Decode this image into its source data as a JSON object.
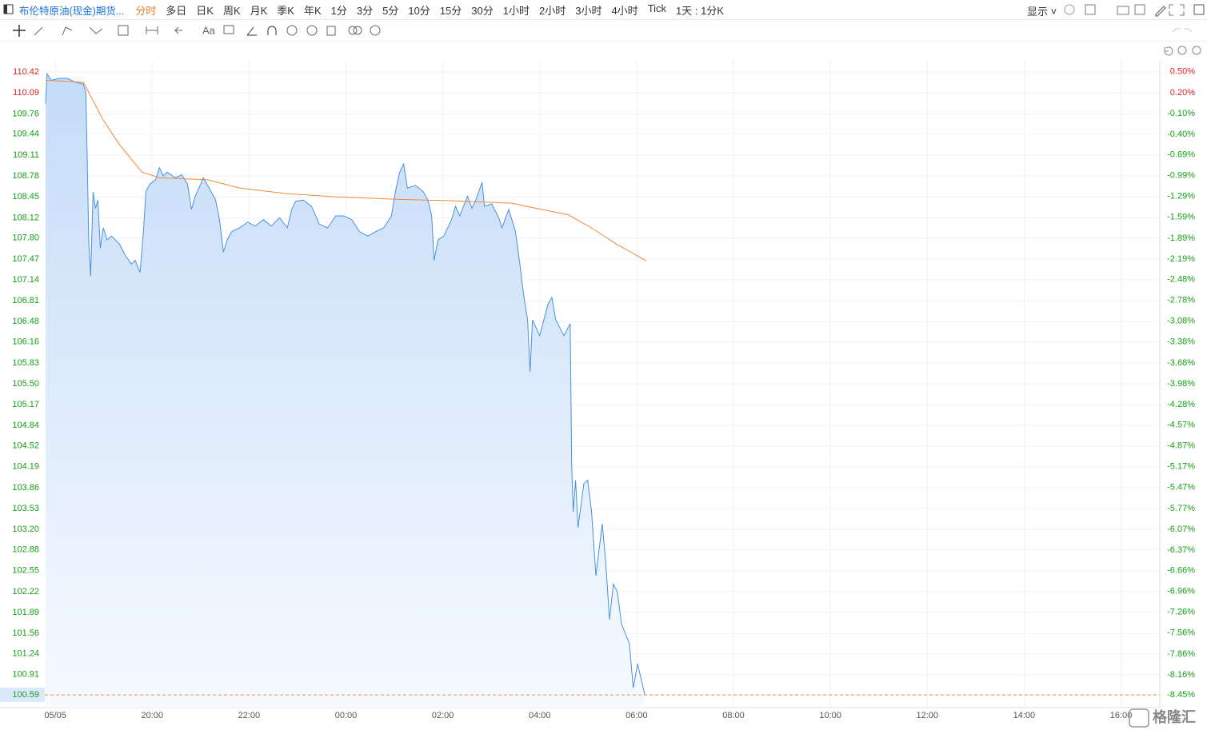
{
  "toolbar": {
    "title": "布伦特原油(现金)期货...",
    "tabs": [
      "分时",
      "多日",
      "日K",
      "周K",
      "月K",
      "季K",
      "年K",
      "1分",
      "3分",
      "5分",
      "10分",
      "15分",
      "30分",
      "1小时",
      "2小时",
      "3小时",
      "4小时",
      "Tick",
      "1天 : 1分K"
    ],
    "active_tab": 0,
    "display": "显示",
    "text_tool": "Aa"
  },
  "watermark": "格隆汇",
  "chart_data": {
    "type": "line",
    "series": [
      {
        "color": "#4a90e2",
        "area": true,
        "x": [
          17.8,
          17.83,
          17.92,
          18.08,
          18.25,
          18.41,
          18.58,
          18.63,
          18.66,
          18.69,
          18.73,
          18.78,
          18.83,
          18.88,
          18.93,
          18.99,
          19.07,
          19.16,
          19.32,
          19.45,
          19.57,
          19.65,
          19.75,
          19.82,
          19.87,
          19.95,
          20.07,
          20.15,
          20.23,
          20.31,
          20.48,
          20.61,
          20.73,
          20.81,
          20.89,
          21.06,
          21.22,
          21.31,
          21.39,
          21.47,
          21.55,
          21.64,
          21.8,
          21.97,
          22.13,
          22.3,
          22.46,
          22.63,
          22.79,
          22.88,
          22.96,
          23.12,
          23.29,
          23.45,
          23.62,
          23.79,
          23.95,
          24.12,
          24.28,
          24.45,
          24.61,
          24.78,
          24.94,
          25.02,
          25.11,
          25.19,
          25.27,
          25.44,
          25.6,
          25.69,
          25.77,
          25.82,
          25.9,
          26.02,
          26.18,
          26.26,
          26.35,
          26.51,
          26.6,
          26.68,
          26.81,
          26.86,
          27.01,
          27.17,
          27.22,
          27.36,
          27.5,
          27.59,
          27.67,
          27.75,
          27.8,
          27.85,
          28.0,
          28.17,
          28.25,
          28.33,
          28.5,
          28.63,
          28.66,
          28.69,
          28.74,
          28.79,
          28.91,
          28.99,
          29.07,
          29.16,
          29.29,
          29.36,
          29.44,
          29.52,
          29.6,
          29.69,
          29.85,
          29.93,
          30.02,
          30.17
        ],
        "values": [
          109.92,
          110.39,
          110.29,
          110.32,
          110.32,
          110.26,
          110.23,
          110.1,
          109.03,
          107.77,
          107.2,
          108.53,
          108.27,
          108.4,
          107.64,
          107.96,
          107.77,
          107.83,
          107.71,
          107.52,
          107.39,
          107.45,
          107.26,
          107.9,
          108.53,
          108.65,
          108.72,
          108.91,
          108.78,
          108.84,
          108.75,
          108.8,
          108.65,
          108.25,
          108.46,
          108.75,
          108.53,
          108.4,
          108.09,
          107.58,
          107.77,
          107.9,
          107.96,
          108.05,
          107.99,
          108.09,
          107.99,
          108.12,
          107.96,
          108.25,
          108.38,
          108.4,
          108.3,
          108.02,
          107.96,
          108.15,
          108.15,
          108.09,
          107.9,
          107.83,
          107.9,
          107.96,
          108.15,
          108.53,
          108.84,
          108.97,
          108.59,
          108.63,
          108.53,
          108.4,
          108.15,
          107.45,
          107.77,
          107.83,
          108.09,
          108.3,
          108.15,
          108.46,
          108.27,
          108.4,
          108.68,
          108.3,
          108.34,
          108.09,
          107.96,
          108.25,
          107.9,
          107.39,
          106.89,
          106.51,
          105.69,
          106.51,
          106.26,
          106.76,
          106.86,
          106.51,
          106.26,
          106.45,
          104.24,
          103.48,
          103.98,
          103.23,
          103.92,
          103.98,
          103.48,
          102.47,
          103.29,
          102.72,
          101.78,
          102.34,
          102.22,
          101.71,
          101.4,
          100.7,
          101.08,
          100.59
        ]
      },
      {
        "color": "#f08a3c",
        "area": false,
        "x": [
          17.8,
          18.58,
          18.69,
          18.99,
          19.32,
          19.79,
          20.15,
          21.14,
          21.8,
          22.79,
          23.79,
          25.11,
          26.1,
          27.42,
          27.92,
          28.58,
          29.07,
          29.57,
          30.2
        ],
        "values": [
          110.29,
          110.26,
          110.1,
          109.66,
          109.28,
          108.84,
          108.75,
          108.72,
          108.59,
          108.5,
          108.45,
          108.41,
          108.39,
          108.35,
          108.27,
          108.17,
          107.96,
          107.71,
          107.44
        ]
      }
    ],
    "xlim": [
      17.8,
      40.8
    ],
    "xticks": [
      {
        "value": 18,
        "label": "05/05"
      },
      {
        "value": 20,
        "label": "20:00"
      },
      {
        "value": 22,
        "label": "22:00"
      },
      {
        "value": 24,
        "label": "00:00"
      },
      {
        "value": 26,
        "label": "02:00"
      },
      {
        "value": 28,
        "label": "04:00"
      },
      {
        "value": 30,
        "label": "06:00"
      },
      {
        "value": 32,
        "label": "08:00"
      },
      {
        "value": 34,
        "label": "10:00"
      },
      {
        "value": 36,
        "label": "12:00"
      },
      {
        "value": 38,
        "label": "14:00"
      },
      {
        "value": 40,
        "label": "16:00"
      }
    ],
    "ylim": [
      100.39,
      110.61
    ],
    "yticks": [
      110.42,
      110.09,
      109.76,
      109.44,
      109.11,
      108.78,
      108.45,
      108.12,
      {
        "value": 107.8,
        "label": "107.80"
      },
      107.47,
      107.14,
      106.81,
      106.48,
      106.16,
      105.83,
      {
        "value": 105.5,
        "label": "105.50"
      },
      105.17,
      104.84,
      104.52,
      104.19,
      103.86,
      103.53,
      {
        "value": 103.2,
        "label": "103.20"
      },
      102.88,
      102.55,
      102.22,
      101.89,
      101.56,
      101.24,
      100.91,
      100.59
    ],
    "y2lim": [
      -8.63,
      0.67
    ],
    "y2ticks": [
      {
        "value": 0.5,
        "label": "0.50%"
      },
      {
        "value": 0.2,
        "label": "0.20%"
      },
      {
        "value": -0.1,
        "label": "-0.10%"
      },
      {
        "value": -0.4,
        "label": "-0.40%"
      },
      {
        "value": -0.69,
        "label": "-0.69%"
      },
      {
        "value": -0.99,
        "label": "-0.99%"
      },
      {
        "value": -1.29,
        "label": "-1.29%"
      },
      {
        "value": -1.59,
        "label": "-1.59%"
      },
      {
        "value": -1.89,
        "label": "-1.89%"
      },
      {
        "value": -2.19,
        "label": "-2.19%"
      },
      {
        "value": -2.48,
        "label": "-2.48%"
      },
      {
        "value": -2.78,
        "label": "-2.78%"
      },
      {
        "value": -3.08,
        "label": "-3.08%"
      },
      {
        "value": -3.38,
        "label": "-3.38%"
      },
      {
        "value": -3.68,
        "label": "-3.68%"
      },
      {
        "value": -3.98,
        "label": "-3.98%"
      },
      {
        "value": -4.28,
        "label": "-4.28%"
      },
      {
        "value": -4.57,
        "label": "-4.57%"
      },
      {
        "value": -4.87,
        "label": "-4.87%"
      },
      {
        "value": -5.17,
        "label": "-5.17%"
      },
      {
        "value": -5.47,
        "label": "-5.47%"
      },
      {
        "value": -5.77,
        "label": "-5.77%"
      },
      {
        "value": -6.07,
        "label": "-6.07%"
      },
      {
        "value": -6.37,
        "label": "-6.37%"
      },
      {
        "value": -6.66,
        "label": "-6.66%"
      },
      {
        "value": -6.96,
        "label": "-6.96%"
      },
      {
        "value": -7.26,
        "label": "-7.26%"
      },
      {
        "value": -7.56,
        "label": "-7.56%"
      },
      {
        "value": -7.86,
        "label": "-7.86%"
      },
      {
        "value": -8.16,
        "label": "-8.16%"
      },
      {
        "value": -8.45,
        "label": "-8.45%"
      }
    ],
    "up_color": "#e02020",
    "down_color": "#16a016",
    "grid": true
  }
}
